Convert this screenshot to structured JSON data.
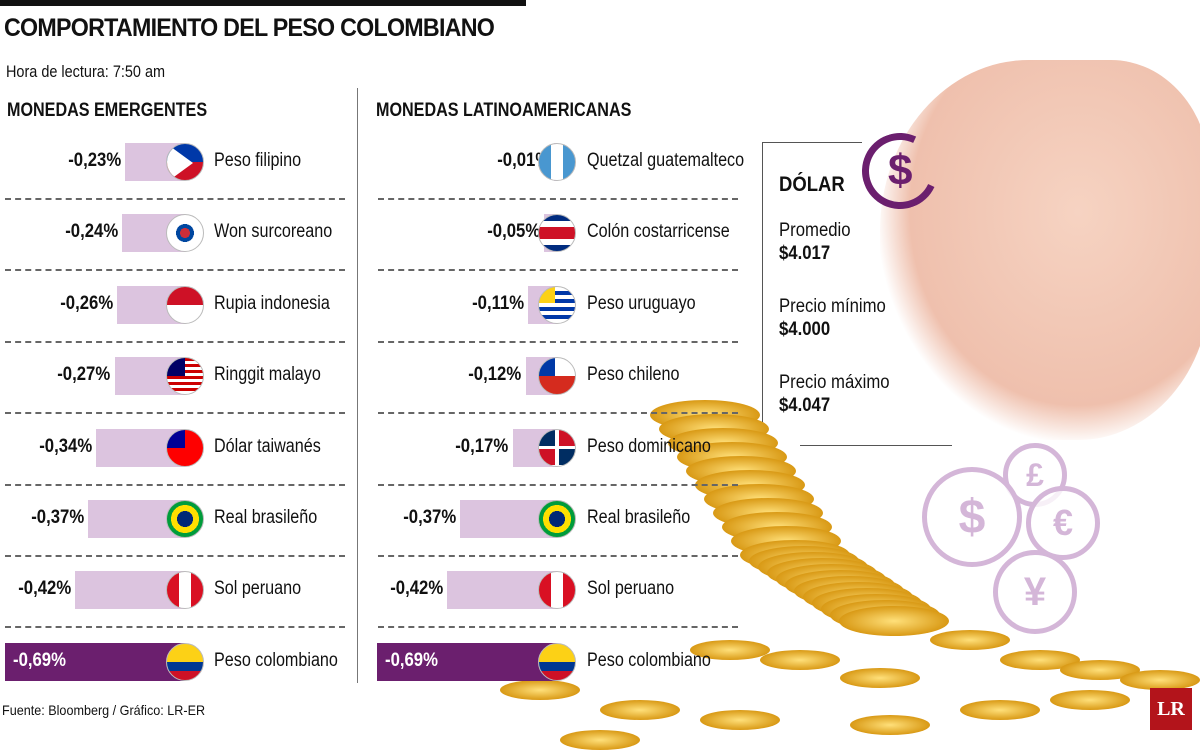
{
  "header": {
    "title": "COMPORTAMIENTO DEL PESO COLOMBIANO",
    "hora": "Hora de lectura: 7:50 am"
  },
  "chart_data": [
    {
      "type": "bar",
      "title": "MONEDAS EMERGENTES",
      "unit": "%",
      "items": [
        {
          "name": "Peso filipino",
          "value": -0.23,
          "label": "-0,23%",
          "flag": "ph"
        },
        {
          "name": "Won surcoreano",
          "value": -0.24,
          "label": "-0,24%",
          "flag": "kr"
        },
        {
          "name": "Rupia indonesia",
          "value": -0.26,
          "label": "-0,26%",
          "flag": "id"
        },
        {
          "name": "Ringgit malayo",
          "value": -0.27,
          "label": "-0,27%",
          "flag": "my"
        },
        {
          "name": "Dólar taiwanés",
          "value": -0.34,
          "label": "-0,34%",
          "flag": "tw"
        },
        {
          "name": "Real brasileño",
          "value": -0.37,
          "label": "-0,37%",
          "flag": "br"
        },
        {
          "name": "Sol peruano",
          "value": -0.42,
          "label": "-0,42%",
          "flag": "pe"
        },
        {
          "name": "Peso colombiano",
          "value": -0.69,
          "label": "-0,69%",
          "flag": "co",
          "highlight": true
        }
      ]
    },
    {
      "type": "bar",
      "title": "MONEDAS LATINOAMERICANAS",
      "unit": "%",
      "items": [
        {
          "name": "Quetzal guatemalteco",
          "value": -0.01,
          "label": "-0,01%",
          "flag": "gt"
        },
        {
          "name": "Colón costarricense",
          "value": -0.05,
          "label": "-0,05%",
          "flag": "cr"
        },
        {
          "name": "Peso uruguayo",
          "value": -0.11,
          "label": "-0,11%",
          "flag": "uy"
        },
        {
          "name": "Peso chileno",
          "value": -0.12,
          "label": "-0,12%",
          "flag": "cl"
        },
        {
          "name": "Peso dominicano",
          "value": -0.17,
          "label": "-0,17%",
          "flag": "do"
        },
        {
          "name": "Real brasileño",
          "value": -0.37,
          "label": "-0,37%",
          "flag": "br"
        },
        {
          "name": "Sol peruano",
          "value": -0.42,
          "label": "-0,42%",
          "flag": "pe"
        },
        {
          "name": "Peso colombiano",
          "value": -0.69,
          "label": "-0,69%",
          "flag": "co",
          "highlight": true
        }
      ]
    }
  ],
  "dolar": {
    "title": "DÓLAR",
    "promedio_label": "Promedio",
    "promedio": "$4.017",
    "min_label": "Precio mínimo",
    "min": "$4.000",
    "max_label": "Precio máximo",
    "max": "$4.047"
  },
  "icons": {
    "dollar": "$",
    "pound": "£",
    "euro": "€",
    "yen": "¥"
  },
  "footer": {
    "source": "Fuente: Bloomberg / Gráfico: LR-ER",
    "logo": "LR"
  },
  "colors": {
    "bar": "#dcc4df",
    "highlight": "#6b1f6e"
  }
}
